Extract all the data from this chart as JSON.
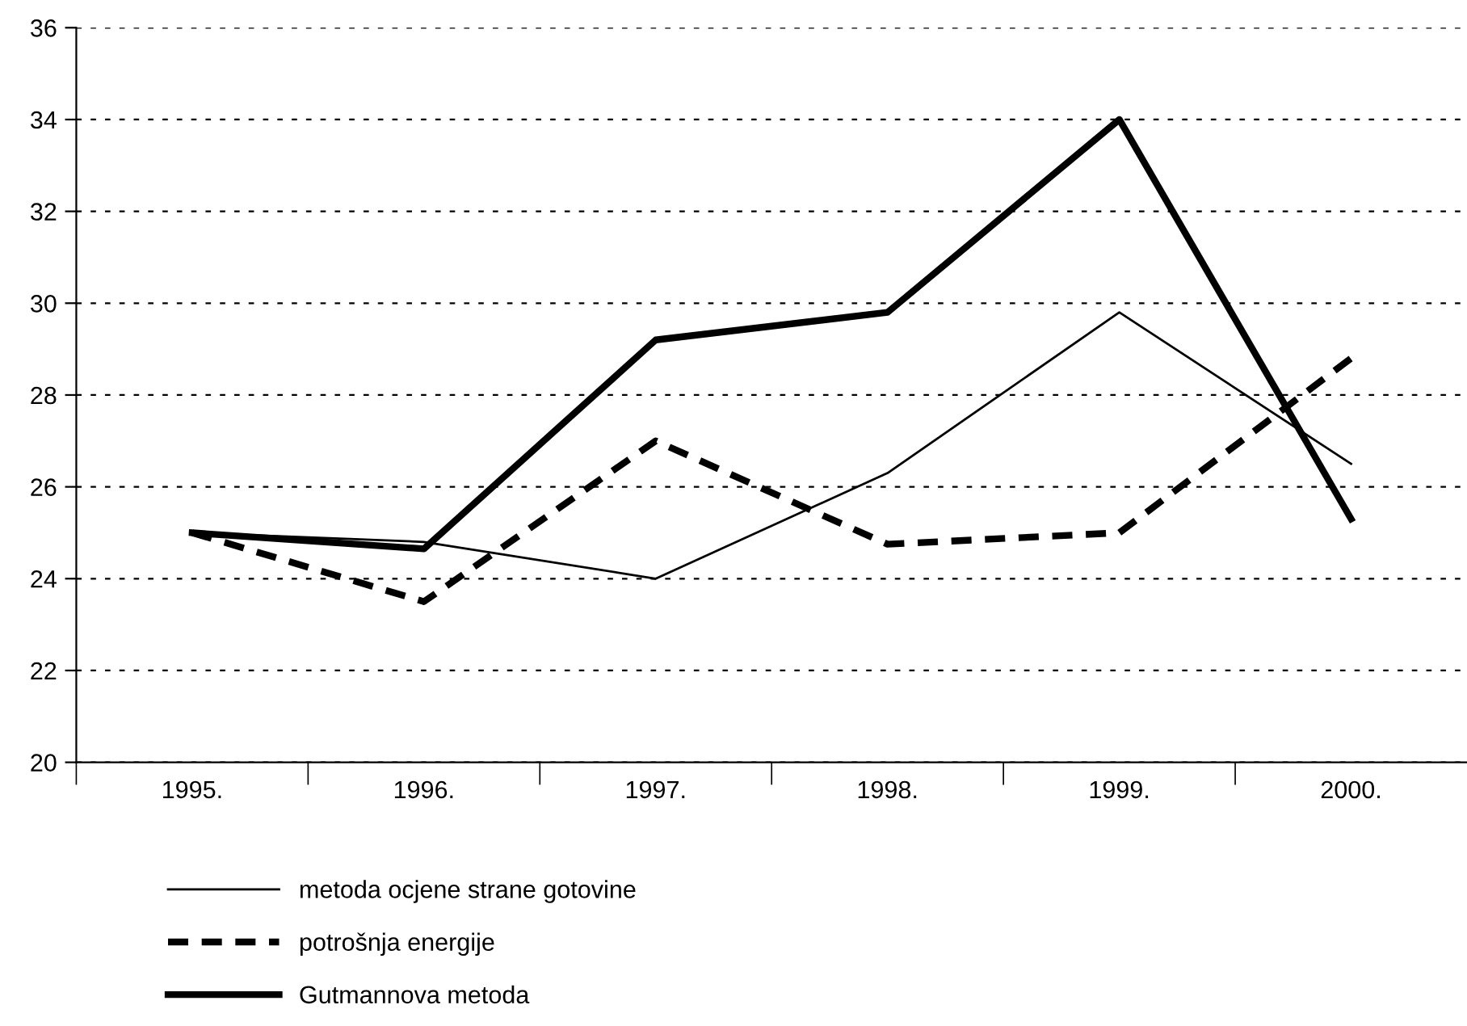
{
  "chart_data": {
    "type": "line",
    "categories": [
      "1995.",
      "1996.",
      "1997.",
      "1998.",
      "1999.",
      "2000."
    ],
    "series": [
      {
        "name": "metoda ocjene strane gotovine",
        "color": "#000000",
        "line_style": "solid",
        "values": [
          25.0,
          24.8,
          24.0,
          26.3,
          29.8,
          26.5
        ]
      },
      {
        "name": "potrošnja energije",
        "color": "#000000",
        "line_style": "dashed",
        "values": [
          25.0,
          23.5,
          27.0,
          24.75,
          25.0,
          28.8
        ]
      },
      {
        "name": "Gutmannova metoda",
        "color": "#000000",
        "line_style": "solid",
        "values": [
          25.0,
          24.65,
          29.2,
          29.8,
          34.0,
          25.3
        ]
      }
    ],
    "ylim": [
      20,
      36
    ],
    "yticks": [
      20,
      22,
      24,
      26,
      28,
      30,
      32,
      34,
      36
    ],
    "grid": "y",
    "legend": "bottom left",
    "marker": "none"
  }
}
